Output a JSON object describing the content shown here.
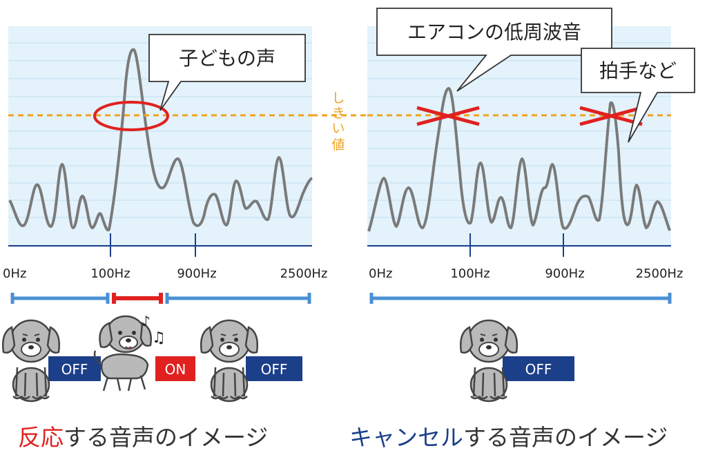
{
  "colors": {
    "panel_bg": "#e3f2fb",
    "grid": "#cde6f5",
    "wave": "#7a7a7a",
    "threshold": "#f0a21f",
    "accent_red": "#e0211f",
    "accent_blue": "#4a8fd4",
    "badge_blue": "#1c3f8a",
    "dog_body": "#b9b9b9",
    "dog_outline": "#444444"
  },
  "threshold_label": "しきい値",
  "left_panel": {
    "axis_ticks": [
      "0Hz",
      "100Hz",
      "900Hz",
      "2500Hz"
    ],
    "callout": "子どもの声",
    "dogs": [
      {
        "badge": "OFF",
        "state": "off"
      },
      {
        "badge": "ON",
        "state": "on"
      },
      {
        "badge": "OFF",
        "state": "off"
      }
    ],
    "caption_emphasis": "反応",
    "caption_rest": "する音声のイメージ"
  },
  "right_panel": {
    "axis_ticks": [
      "0Hz",
      "100Hz",
      "900Hz",
      "2500Hz"
    ],
    "callout_1": "エアコンの低周波音",
    "callout_2": "拍手など",
    "dogs": [
      {
        "badge": "OFF",
        "state": "off"
      }
    ],
    "caption_emphasis": "キャンセル",
    "caption_rest": "する音声のイメージ"
  },
  "icons": {
    "music_note": "music-note-icon",
    "cross_mark": "cross-mark-icon"
  }
}
